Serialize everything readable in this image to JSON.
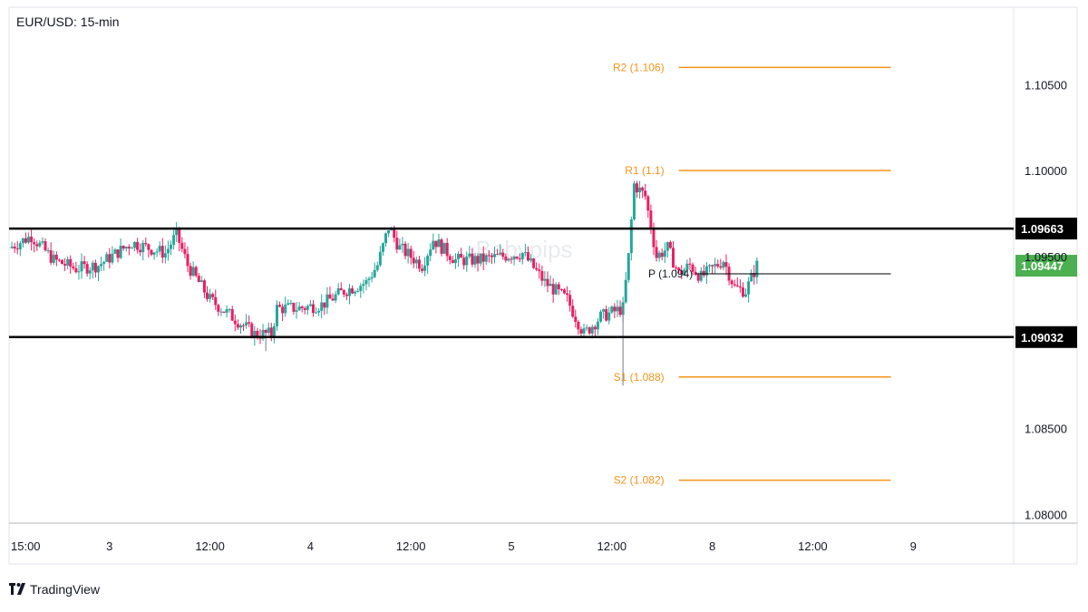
{
  "chart_data": {
    "type": "candlestick",
    "title": "EUR/USD: 15-min",
    "ylim": [
      1.0795,
      1.1095
    ],
    "y_ticks": [
      {
        "value": 1.105,
        "label": "1.10500"
      },
      {
        "value": 1.1,
        "label": "1.10000"
      },
      {
        "value": 1.095,
        "label": "1.09500"
      },
      {
        "value": 1.085,
        "label": "1.08500"
      },
      {
        "value": 1.08,
        "label": "1.08000"
      }
    ],
    "x_range": [
      0,
      90
    ],
    "x_ticks": [
      {
        "value": 0,
        "label": "15:00"
      },
      {
        "value": 9,
        "label": "3"
      },
      {
        "value": 18,
        "label": "12:00"
      },
      {
        "value": 27,
        "label": "4"
      },
      {
        "value": 36,
        "label": "12:00"
      },
      {
        "value": 45,
        "label": "5"
      },
      {
        "value": 54,
        "label": "12:00"
      },
      {
        "value": 63,
        "label": "8"
      },
      {
        "value": 72,
        "label": "12:00"
      },
      {
        "value": 81,
        "label": "9"
      }
    ],
    "price_path": [
      [
        0,
        1.0955
      ],
      [
        2,
        1.0962
      ],
      [
        4,
        1.0948
      ],
      [
        6,
        1.0943
      ],
      [
        8,
        1.0945
      ],
      [
        11,
        1.0958
      ],
      [
        14,
        1.0952
      ],
      [
        15,
        1.0963
      ],
      [
        16,
        1.0945
      ],
      [
        18,
        1.0925
      ],
      [
        20,
        1.0915
      ],
      [
        22,
        1.0905
      ],
      [
        23.5,
        1.0905
      ],
      [
        24,
        1.092
      ],
      [
        26,
        1.092
      ],
      [
        28,
        1.0922
      ],
      [
        30,
        1.093
      ],
      [
        32,
        1.0935
      ],
      [
        33,
        1.0945
      ],
      [
        34,
        1.0967
      ],
      [
        35,
        1.0955
      ],
      [
        37,
        1.0945
      ],
      [
        38,
        1.096
      ],
      [
        40,
        1.0948
      ],
      [
        42,
        1.0948
      ],
      [
        44,
        1.095
      ],
      [
        46,
        1.0952
      ],
      [
        48,
        1.0935
      ],
      [
        50,
        1.0925
      ],
      [
        51.5,
        1.0905
      ],
      [
        53,
        1.0915
      ],
      [
        55,
        1.092
      ],
      [
        55.5,
        1.095
      ],
      [
        56,
        1.0992
      ],
      [
        57,
        1.0985
      ],
      [
        58,
        1.095
      ],
      [
        59,
        1.0955
      ],
      [
        60,
        1.094
      ],
      [
        61,
        1.0945
      ],
      [
        62,
        1.0938
      ],
      [
        64,
        1.0948
      ],
      [
        65,
        1.0932
      ],
      [
        66,
        1.093
      ],
      [
        67,
        1.0945
      ]
    ],
    "special_wicks": [
      {
        "x": 23,
        "low": 1.0895
      },
      {
        "x": 55,
        "low": 1.0875
      }
    ],
    "levels": [
      {
        "name": "resistance",
        "value": 1.09663,
        "label": "1.09663"
      },
      {
        "name": "support",
        "value": 1.09032,
        "label": "1.09032"
      }
    ],
    "pivots": [
      {
        "name": "r2",
        "label": "R2 (1.106)",
        "value": 1.106
      },
      {
        "name": "r1",
        "label": "R1 (1.1)",
        "value": 1.1
      },
      {
        "name": "p",
        "label": "P (1.094)",
        "value": 1.094
      },
      {
        "name": "s1",
        "label": "S1 (1.088)",
        "value": 1.088
      },
      {
        "name": "s2",
        "label": "S2 (1.082)",
        "value": 1.082
      }
    ],
    "pivot_x_range": [
      60,
      79
    ],
    "pivot_line_start": 61.5,
    "current_price": {
      "value": 1.09447,
      "label": "1.09447"
    },
    "colors": {
      "up": "#26a69a",
      "down": "#e91e63",
      "pivot": "#f7931a",
      "level": "#000000",
      "current": "#4caf50",
      "grid": "#e0e3eb"
    }
  },
  "watermark": "Babypips",
  "brand": "TradingView"
}
